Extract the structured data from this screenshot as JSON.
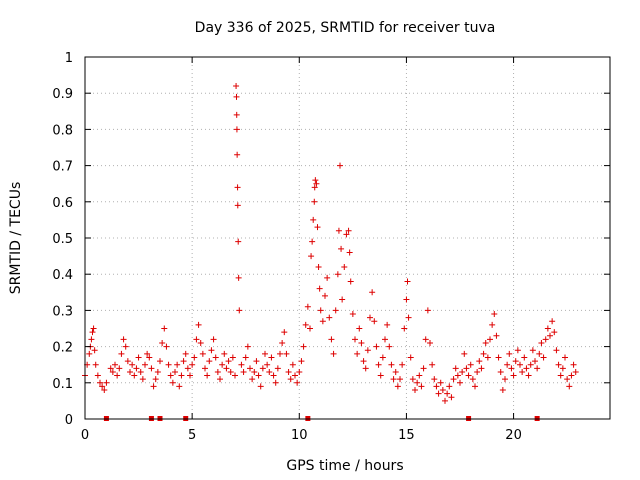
{
  "chart_data": {
    "type": "scatter",
    "title": "Day 336 of 2025, SRMTID for receiver tuva",
    "xlabel": "GPS time / hours",
    "ylabel": "SRMTID / TECUs",
    "xlim": [
      0,
      24.5
    ],
    "ylim": [
      0,
      1
    ],
    "x_ticks": [
      0,
      5,
      10,
      15,
      20
    ],
    "y_ticks": [
      0,
      0.1,
      0.2,
      0.3,
      0.4,
      0.5,
      0.6,
      0.7,
      0.8,
      0.9,
      1
    ],
    "x_tick_labels": [
      "0",
      "5",
      "10",
      "15",
      "20"
    ],
    "y_tick_labels": [
      "0",
      "0.1",
      "0.2",
      "0.3",
      "0.4",
      "0.5",
      "0.6",
      "0.7",
      "0.8",
      "0.9",
      "1"
    ],
    "grid": true,
    "marker": "+",
    "color": "#dd0000",
    "series": [
      {
        "name": "SRMTID",
        "points": [
          [
            0.0,
            0.12
          ],
          [
            0.1,
            0.15
          ],
          [
            0.2,
            0.18
          ],
          [
            0.25,
            0.2
          ],
          [
            0.3,
            0.22
          ],
          [
            0.35,
            0.24
          ],
          [
            0.4,
            0.25
          ],
          [
            0.45,
            0.19
          ],
          [
            0.5,
            0.15
          ],
          [
            0.6,
            0.12
          ],
          [
            0.7,
            0.1
          ],
          [
            0.8,
            0.09
          ],
          [
            0.9,
            0.08
          ],
          [
            1.0,
            0.1
          ],
          [
            1.2,
            0.14
          ],
          [
            1.3,
            0.13
          ],
          [
            1.4,
            0.15
          ],
          [
            1.5,
            0.12
          ],
          [
            1.6,
            0.14
          ],
          [
            1.7,
            0.18
          ],
          [
            1.8,
            0.22
          ],
          [
            1.9,
            0.2
          ],
          [
            2.0,
            0.16
          ],
          [
            2.1,
            0.13
          ],
          [
            2.2,
            0.15
          ],
          [
            2.3,
            0.12
          ],
          [
            2.4,
            0.14
          ],
          [
            2.5,
            0.17
          ],
          [
            2.6,
            0.13
          ],
          [
            2.7,
            0.11
          ],
          [
            2.8,
            0.15
          ],
          [
            2.9,
            0.18
          ],
          [
            3.0,
            0.17
          ],
          [
            3.1,
            0.14
          ],
          [
            3.2,
            0.09
          ],
          [
            3.3,
            0.11
          ],
          [
            3.4,
            0.13
          ],
          [
            3.5,
            0.16
          ],
          [
            3.6,
            0.21
          ],
          [
            3.7,
            0.25
          ],
          [
            3.8,
            0.2
          ],
          [
            3.9,
            0.15
          ],
          [
            4.0,
            0.12
          ],
          [
            4.1,
            0.1
          ],
          [
            4.2,
            0.13
          ],
          [
            4.3,
            0.15
          ],
          [
            4.4,
            0.09
          ],
          [
            4.5,
            0.12
          ],
          [
            4.6,
            0.16
          ],
          [
            4.7,
            0.18
          ],
          [
            4.8,
            0.14
          ],
          [
            4.9,
            0.12
          ],
          [
            5.0,
            0.15
          ],
          [
            5.1,
            0.17
          ],
          [
            5.2,
            0.22
          ],
          [
            5.3,
            0.26
          ],
          [
            5.4,
            0.21
          ],
          [
            5.5,
            0.18
          ],
          [
            5.6,
            0.14
          ],
          [
            5.7,
            0.12
          ],
          [
            5.8,
            0.16
          ],
          [
            5.9,
            0.19
          ],
          [
            6.0,
            0.22
          ],
          [
            6.1,
            0.17
          ],
          [
            6.2,
            0.13
          ],
          [
            6.3,
            0.11
          ],
          [
            6.4,
            0.15
          ],
          [
            6.5,
            0.18
          ],
          [
            6.6,
            0.14
          ],
          [
            6.7,
            0.16
          ],
          [
            6.8,
            0.13
          ],
          [
            6.9,
            0.17
          ],
          [
            7.0,
            0.12
          ],
          [
            7.05,
            0.92
          ],
          [
            7.07,
            0.89
          ],
          [
            7.08,
            0.84
          ],
          [
            7.09,
            0.8
          ],
          [
            7.1,
            0.73
          ],
          [
            7.12,
            0.64
          ],
          [
            7.13,
            0.59
          ],
          [
            7.15,
            0.49
          ],
          [
            7.17,
            0.39
          ],
          [
            7.2,
            0.3
          ],
          [
            7.3,
            0.15
          ],
          [
            7.4,
            0.13
          ],
          [
            7.5,
            0.17
          ],
          [
            7.6,
            0.2
          ],
          [
            7.7,
            0.14
          ],
          [
            7.8,
            0.11
          ],
          [
            7.9,
            0.13
          ],
          [
            8.0,
            0.16
          ],
          [
            8.1,
            0.12
          ],
          [
            8.2,
            0.09
          ],
          [
            8.3,
            0.14
          ],
          [
            8.4,
            0.18
          ],
          [
            8.5,
            0.15
          ],
          [
            8.6,
            0.13
          ],
          [
            8.7,
            0.17
          ],
          [
            8.8,
            0.12
          ],
          [
            8.9,
            0.1
          ],
          [
            9.0,
            0.14
          ],
          [
            9.1,
            0.18
          ],
          [
            9.2,
            0.21
          ],
          [
            9.3,
            0.24
          ],
          [
            9.4,
            0.18
          ],
          [
            9.5,
            0.13
          ],
          [
            9.6,
            0.11
          ],
          [
            9.7,
            0.15
          ],
          [
            9.8,
            0.12
          ],
          [
            9.9,
            0.1
          ],
          [
            10.0,
            0.13
          ],
          [
            10.1,
            0.16
          ],
          [
            10.2,
            0.2
          ],
          [
            10.3,
            0.26
          ],
          [
            10.4,
            0.31
          ],
          [
            10.5,
            0.25
          ],
          [
            10.55,
            0.45
          ],
          [
            10.6,
            0.49
          ],
          [
            10.65,
            0.55
          ],
          [
            10.7,
            0.6
          ],
          [
            10.72,
            0.64
          ],
          [
            10.75,
            0.66
          ],
          [
            10.8,
            0.65
          ],
          [
            10.85,
            0.53
          ],
          [
            10.9,
            0.42
          ],
          [
            10.95,
            0.36
          ],
          [
            11.0,
            0.3
          ],
          [
            11.1,
            0.27
          ],
          [
            11.2,
            0.34
          ],
          [
            11.3,
            0.39
          ],
          [
            11.4,
            0.28
          ],
          [
            11.5,
            0.22
          ],
          [
            11.6,
            0.18
          ],
          [
            11.7,
            0.3
          ],
          [
            11.8,
            0.4
          ],
          [
            11.85,
            0.52
          ],
          [
            11.9,
            0.7
          ],
          [
            11.95,
            0.47
          ],
          [
            12.0,
            0.33
          ],
          [
            12.1,
            0.42
          ],
          [
            12.2,
            0.51
          ],
          [
            12.3,
            0.52
          ],
          [
            12.35,
            0.46
          ],
          [
            12.4,
            0.38
          ],
          [
            12.5,
            0.29
          ],
          [
            12.6,
            0.22
          ],
          [
            12.7,
            0.18
          ],
          [
            12.8,
            0.25
          ],
          [
            12.9,
            0.21
          ],
          [
            13.0,
            0.16
          ],
          [
            13.1,
            0.14
          ],
          [
            13.2,
            0.19
          ],
          [
            13.3,
            0.28
          ],
          [
            13.4,
            0.35
          ],
          [
            13.5,
            0.27
          ],
          [
            13.6,
            0.2
          ],
          [
            13.7,
            0.15
          ],
          [
            13.8,
            0.12
          ],
          [
            13.9,
            0.17
          ],
          [
            14.0,
            0.22
          ],
          [
            14.1,
            0.26
          ],
          [
            14.2,
            0.2
          ],
          [
            14.3,
            0.15
          ],
          [
            14.4,
            0.11
          ],
          [
            14.5,
            0.13
          ],
          [
            14.6,
            0.09
          ],
          [
            14.7,
            0.11
          ],
          [
            14.8,
            0.15
          ],
          [
            14.9,
            0.25
          ],
          [
            15.0,
            0.33
          ],
          [
            15.05,
            0.38
          ],
          [
            15.1,
            0.28
          ],
          [
            15.2,
            0.17
          ],
          [
            15.3,
            0.11
          ],
          [
            15.4,
            0.08
          ],
          [
            15.5,
            0.1
          ],
          [
            15.6,
            0.12
          ],
          [
            15.7,
            0.09
          ],
          [
            15.8,
            0.14
          ],
          [
            15.9,
            0.22
          ],
          [
            16.0,
            0.3
          ],
          [
            16.1,
            0.21
          ],
          [
            16.2,
            0.15
          ],
          [
            16.3,
            0.11
          ],
          [
            16.4,
            0.09
          ],
          [
            16.5,
            0.07
          ],
          [
            16.6,
            0.1
          ],
          [
            16.7,
            0.08
          ],
          [
            16.8,
            0.05
          ],
          [
            16.9,
            0.07
          ],
          [
            17.0,
            0.09
          ],
          [
            17.1,
            0.06
          ],
          [
            17.2,
            0.11
          ],
          [
            17.3,
            0.14
          ],
          [
            17.4,
            0.12
          ],
          [
            17.5,
            0.1
          ],
          [
            17.6,
            0.13
          ],
          [
            17.7,
            0.18
          ],
          [
            17.8,
            0.14
          ],
          [
            17.9,
            0.12
          ],
          [
            18.0,
            0.15
          ],
          [
            18.1,
            0.11
          ],
          [
            18.2,
            0.09
          ],
          [
            18.3,
            0.13
          ],
          [
            18.4,
            0.16
          ],
          [
            18.5,
            0.14
          ],
          [
            18.6,
            0.18
          ],
          [
            18.7,
            0.21
          ],
          [
            18.8,
            0.17
          ],
          [
            18.9,
            0.22
          ],
          [
            19.0,
            0.26
          ],
          [
            19.1,
            0.29
          ],
          [
            19.2,
            0.23
          ],
          [
            19.3,
            0.17
          ],
          [
            19.4,
            0.13
          ],
          [
            19.5,
            0.08
          ],
          [
            19.6,
            0.11
          ],
          [
            19.7,
            0.15
          ],
          [
            19.8,
            0.18
          ],
          [
            19.9,
            0.14
          ],
          [
            20.0,
            0.12
          ],
          [
            20.1,
            0.16
          ],
          [
            20.2,
            0.19
          ],
          [
            20.3,
            0.15
          ],
          [
            20.4,
            0.13
          ],
          [
            20.5,
            0.17
          ],
          [
            20.6,
            0.14
          ],
          [
            20.7,
            0.12
          ],
          [
            20.8,
            0.15
          ],
          [
            20.9,
            0.19
          ],
          [
            21.0,
            0.16
          ],
          [
            21.1,
            0.14
          ],
          [
            21.2,
            0.18
          ],
          [
            21.3,
            0.21
          ],
          [
            21.4,
            0.17
          ],
          [
            21.5,
            0.22
          ],
          [
            21.6,
            0.25
          ],
          [
            21.7,
            0.23
          ],
          [
            21.8,
            0.27
          ],
          [
            21.9,
            0.24
          ],
          [
            22.0,
            0.19
          ],
          [
            22.1,
            0.15
          ],
          [
            22.2,
            0.12
          ],
          [
            22.3,
            0.14
          ],
          [
            22.4,
            0.17
          ],
          [
            22.5,
            0.11
          ],
          [
            22.6,
            0.09
          ],
          [
            22.7,
            0.12
          ],
          [
            22.8,
            0.15
          ],
          [
            22.9,
            0.13
          ]
        ]
      }
    ],
    "gap_markers_x": [
      1.0,
      3.1,
      3.5,
      4.7,
      10.4,
      17.9,
      21.1
    ]
  }
}
